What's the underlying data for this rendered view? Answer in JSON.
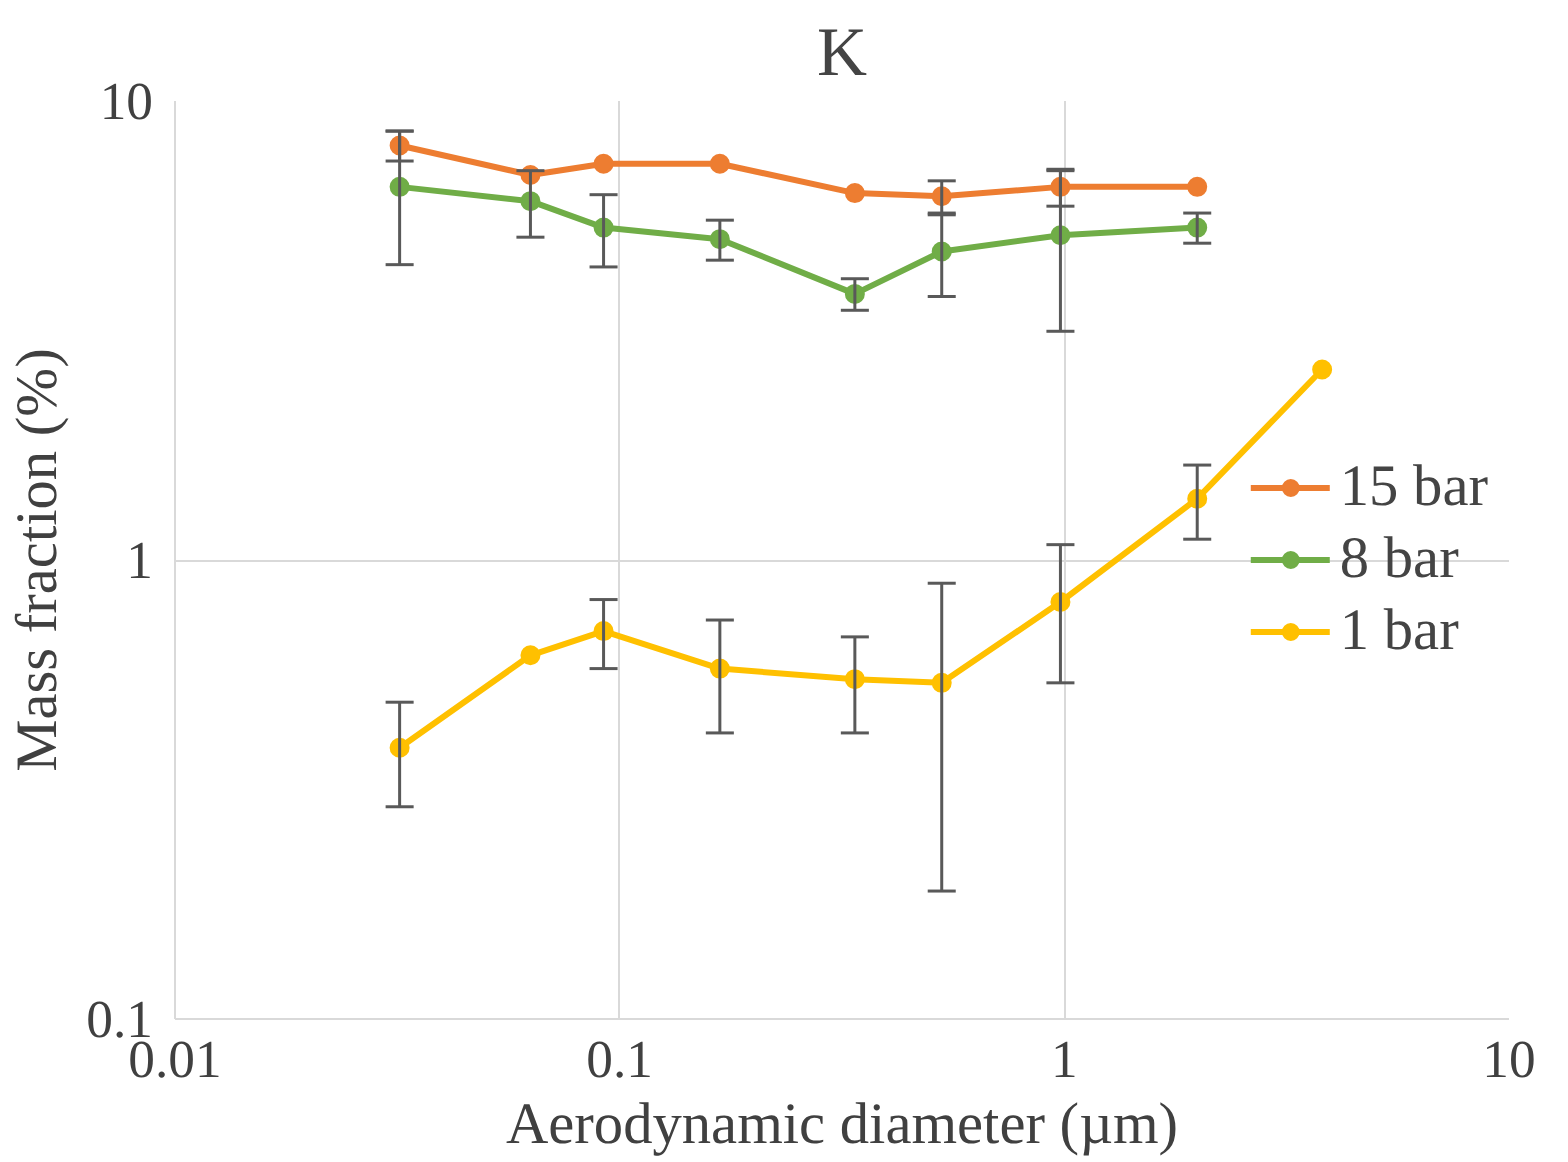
{
  "chart_data": {
    "type": "line",
    "title": "K",
    "xlabel": "Aerodynamic diameter (µm)",
    "ylabel": "Mass fraction (%)",
    "log": "xy",
    "xlim": [
      0.01,
      10
    ],
    "ylim": [
      0.1,
      10
    ],
    "xticks": [
      0.01,
      0.1,
      1,
      10
    ],
    "yticks": [
      0.1,
      1,
      10
    ],
    "grid": true,
    "legend": "right",
    "marker": "circle",
    "line_style": "solid",
    "series": [
      {
        "name": "15 bar",
        "color": "#ed7d31",
        "x": [
          0.032,
          0.063,
          0.092,
          0.168,
          0.338,
          0.53,
          0.98,
          1.99
        ],
        "values": [
          8.0,
          6.9,
          7.3,
          7.3,
          6.3,
          6.2,
          6.5,
          6.5
        ],
        "errors": [
          0.6,
          null,
          null,
          null,
          null,
          0.5,
          0.6,
          null
        ]
      },
      {
        "name": "8 bar",
        "color": "#70ad47",
        "x": [
          0.032,
          0.063,
          0.092,
          0.168,
          0.338,
          0.53,
          0.98,
          1.99
        ],
        "values": [
          6.5,
          6.05,
          5.3,
          5.0,
          3.8,
          4.7,
          5.1,
          5.3
        ],
        "errors": [
          2.1,
          1.0,
          0.95,
          0.5,
          0.3,
          0.95,
          1.95,
          0.4
        ]
      },
      {
        "name": "1 bar",
        "color": "#ffc000",
        "x": [
          0.032,
          0.063,
          0.092,
          0.168,
          0.338,
          0.53,
          0.98,
          1.99,
          3.8
        ],
        "values": [
          0.39,
          0.62,
          0.7,
          0.58,
          0.55,
          0.54,
          0.81,
          1.36,
          2.6
        ],
        "errors": [
          0.1,
          null,
          0.12,
          0.16,
          0.13,
          0.35,
          0.27,
          0.25,
          null
        ]
      }
    ]
  }
}
